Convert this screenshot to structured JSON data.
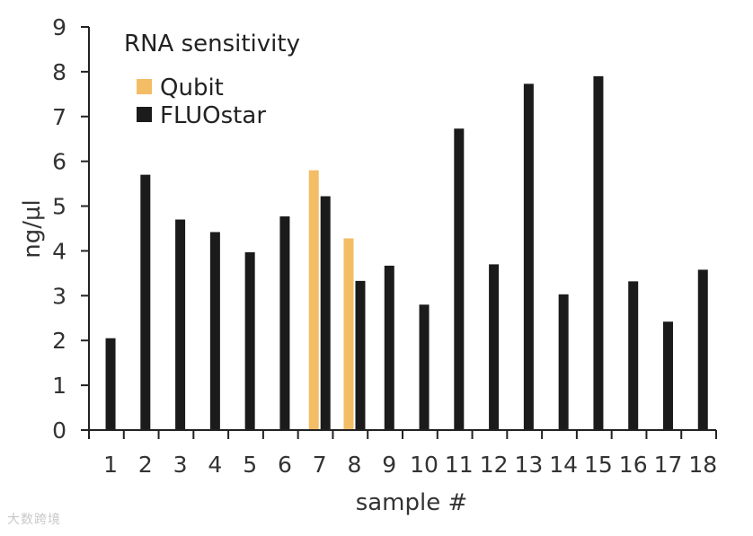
{
  "chart_data": {
    "type": "bar",
    "title": "RNA sensitivity",
    "xlabel": "sample #",
    "ylabel": "ng/µl",
    "ylim": [
      0,
      9
    ],
    "yticks": [
      0,
      1,
      2,
      3,
      4,
      5,
      6,
      7,
      8,
      9
    ],
    "categories": [
      "1",
      "2",
      "3",
      "4",
      "5",
      "6",
      "7",
      "8",
      "9",
      "10",
      "11",
      "12",
      "13",
      "14",
      "15",
      "16",
      "17",
      "18"
    ],
    "series": [
      {
        "name": "Qubit",
        "color": "#f3bd66",
        "values": [
          null,
          null,
          null,
          null,
          null,
          null,
          5.8,
          4.28,
          null,
          null,
          null,
          null,
          null,
          null,
          null,
          null,
          null,
          null
        ]
      },
      {
        "name": "FLUOstar",
        "color": "#1b1b1b",
        "values": [
          2.05,
          5.7,
          4.7,
          4.42,
          3.97,
          4.77,
          5.22,
          3.33,
          3.67,
          2.8,
          6.73,
          3.7,
          7.73,
          3.03,
          7.9,
          3.32,
          2.42,
          3.58
        ]
      }
    ],
    "legend_position": "top-left",
    "grid": false
  },
  "watermark": "大数跨境"
}
